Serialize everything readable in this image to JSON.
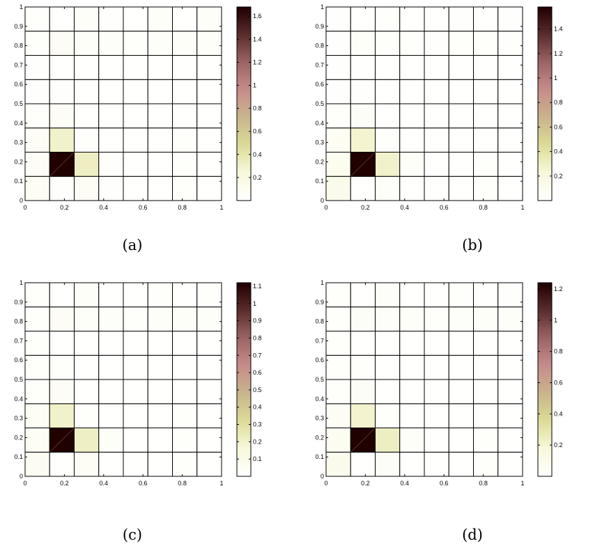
{
  "colormap": [
    "#ffffff",
    "#f8f8dc",
    "#dcdc96",
    "#c8b48c",
    "#c88c8c",
    "#9c6464",
    "#5a2c2c",
    "#210000"
  ],
  "chart_data": [
    {
      "type": "heatmap",
      "caption": "(a)",
      "xlim": [
        0,
        1
      ],
      "ylim": [
        0,
        1
      ],
      "x_ticks": [
        "0",
        "0.2",
        "0.4",
        "0.6",
        "0.8",
        "1"
      ],
      "y_ticks": [
        "0",
        "0.1",
        "0.2",
        "0.3",
        "0.4",
        "0.5",
        "0.6",
        "0.7",
        "0.8",
        "0.9",
        "1"
      ],
      "colorbar_max": 1.68,
      "colorbar_ticks": [
        "0.2",
        "0.4",
        "0.6",
        "0.8",
        "1",
        "1.2",
        "1.4",
        "1.6"
      ],
      "grid": [
        [
          0.08,
          0.02,
          0.06,
          0.02,
          0.01,
          0.01,
          0.03,
          0.01
        ],
        [
          0.06,
          1.68,
          0.33,
          0.03,
          0.01,
          0.01,
          0.03,
          0.01
        ],
        [
          0.07,
          0.3,
          0.03,
          0.01,
          0.01,
          0.01,
          0.03,
          0.01
        ],
        [
          0.03,
          0.06,
          0.01,
          0.01,
          0.01,
          0.01,
          0.01,
          0.01
        ],
        [
          0.02,
          0.02,
          0.01,
          0.01,
          0.01,
          0.01,
          0.01,
          0.01
        ],
        [
          0.02,
          0.01,
          0.01,
          0.01,
          0.01,
          0.01,
          0.01,
          0.01
        ],
        [
          0.03,
          0.06,
          0.05,
          0.04,
          0.03,
          0.04,
          0.04,
          0.04
        ],
        [
          0.03,
          0.01,
          0.05,
          0.02,
          0.01,
          0.04,
          0.01,
          0.04
        ]
      ]
    },
    {
      "type": "heatmap",
      "caption": "(b)",
      "xlim": [
        0,
        1
      ],
      "ylim": [
        0,
        1
      ],
      "x_ticks": [
        "0",
        "0.2",
        "0.4",
        "0.6",
        "0.8",
        "1"
      ],
      "y_ticks": [
        "0",
        "0.1",
        "0.2",
        "0.3",
        "0.4",
        "0.5",
        "0.6",
        "0.7",
        "0.8",
        "0.9",
        "1"
      ],
      "colorbar_max": 1.58,
      "colorbar_ticks": [
        "0.2",
        "0.4",
        "0.6",
        "0.8",
        "1",
        "1.2",
        "1.4"
      ],
      "grid": [
        [
          0.12,
          0.01,
          0.04,
          0.01,
          0.01,
          0.01,
          0.03,
          0.01
        ],
        [
          0.1,
          1.58,
          0.28,
          0.04,
          0.01,
          0.01,
          0.03,
          0.01
        ],
        [
          0.07,
          0.26,
          0.03,
          0.01,
          0.01,
          0.01,
          0.01,
          0.01
        ],
        [
          0.03,
          0.05,
          0.01,
          0.01,
          0.01,
          0.01,
          0.01,
          0.01
        ],
        [
          0.02,
          0.02,
          0.01,
          0.01,
          0.01,
          0.01,
          0.01,
          0.01
        ],
        [
          0.02,
          0.01,
          0.01,
          0.01,
          0.01,
          0.01,
          0.01,
          0.01
        ],
        [
          0.02,
          0.04,
          0.03,
          0.03,
          0.02,
          0.03,
          0.03,
          0.03
        ],
        [
          0.02,
          0.01,
          0.03,
          0.01,
          0.01,
          0.02,
          0.01,
          0.02
        ]
      ]
    },
    {
      "type": "heatmap",
      "caption": "(c)",
      "xlim": [
        0,
        1
      ],
      "ylim": [
        0,
        1
      ],
      "x_ticks": [
        "0",
        "0.2",
        "0.4",
        "0.6",
        "0.8",
        "1"
      ],
      "y_ticks": [
        "0",
        "0.1",
        "0.2",
        "0.3",
        "0.4",
        "0.5",
        "0.6",
        "0.7",
        "0.8",
        "0.9",
        "1"
      ],
      "colorbar_max": 1.12,
      "colorbar_ticks": [
        "0.1",
        "0.2",
        "0.3",
        "0.4",
        "0.5",
        "0.6",
        "0.7",
        "0.8",
        "0.9",
        "1",
        "1.1"
      ],
      "grid": [
        [
          0.06,
          0.01,
          0.04,
          0.01,
          0.01,
          0.01,
          0.02,
          0.01
        ],
        [
          0.05,
          1.12,
          0.21,
          0.03,
          0.01,
          0.01,
          0.02,
          0.01
        ],
        [
          0.05,
          0.2,
          0.02,
          0.01,
          0.01,
          0.01,
          0.02,
          0.01
        ],
        [
          0.02,
          0.04,
          0.01,
          0.01,
          0.01,
          0.01,
          0.01,
          0.01
        ],
        [
          0.02,
          0.02,
          0.01,
          0.01,
          0.01,
          0.01,
          0.01,
          0.01
        ],
        [
          0.02,
          0.01,
          0.01,
          0.01,
          0.01,
          0.01,
          0.01,
          0.01
        ],
        [
          0.02,
          0.04,
          0.03,
          0.03,
          0.02,
          0.03,
          0.03,
          0.03
        ],
        [
          0.02,
          0.01,
          0.03,
          0.01,
          0.01,
          0.02,
          0.01,
          0.02
        ]
      ]
    },
    {
      "type": "heatmap",
      "caption": "(d)",
      "xlim": [
        0,
        1
      ],
      "ylim": [
        0,
        1
      ],
      "x_ticks": [
        "0",
        "0.2",
        "0.4",
        "0.6",
        "0.8",
        "1"
      ],
      "y_ticks": [
        "0",
        "0.1",
        "0.2",
        "0.3",
        "0.4",
        "0.5",
        "0.6",
        "0.7",
        "0.8",
        "0.9",
        "1"
      ],
      "colorbar_max": 1.24,
      "colorbar_ticks": [
        "0.2",
        "0.4",
        "0.6",
        "0.8",
        "1",
        "1.2"
      ],
      "grid": [
        [
          0.09,
          0.01,
          0.04,
          0.01,
          0.01,
          0.01,
          0.02,
          0.01
        ],
        [
          0.07,
          1.24,
          0.24,
          0.03,
          0.01,
          0.01,
          0.02,
          0.01
        ],
        [
          0.05,
          0.21,
          0.02,
          0.01,
          0.01,
          0.01,
          0.01,
          0.01
        ],
        [
          0.02,
          0.04,
          0.01,
          0.01,
          0.01,
          0.01,
          0.01,
          0.01
        ],
        [
          0.02,
          0.02,
          0.01,
          0.01,
          0.01,
          0.01,
          0.01,
          0.01
        ],
        [
          0.02,
          0.01,
          0.01,
          0.01,
          0.01,
          0.01,
          0.01,
          0.01
        ],
        [
          0.02,
          0.04,
          0.03,
          0.03,
          0.02,
          0.03,
          0.03,
          0.03
        ],
        [
          0.02,
          0.01,
          0.03,
          0.01,
          0.01,
          0.02,
          0.01,
          0.02
        ]
      ]
    }
  ]
}
